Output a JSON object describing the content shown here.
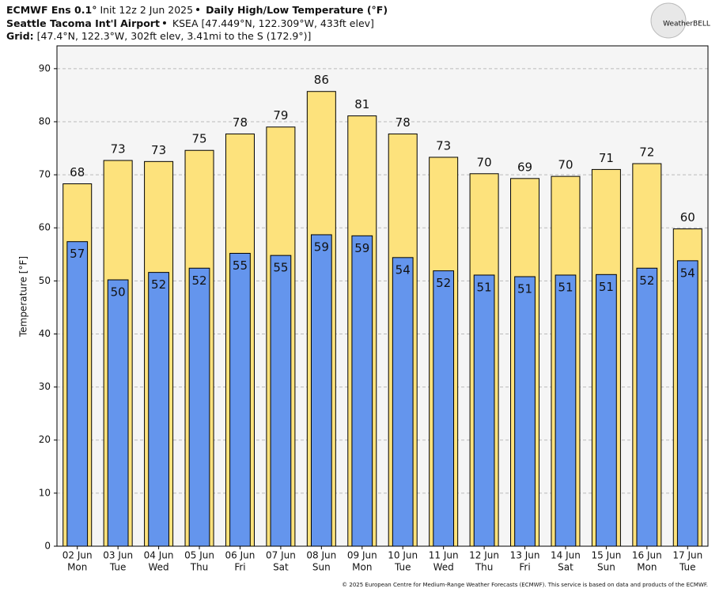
{
  "chart_data": {
    "type": "bar",
    "model": "ECMWF Ens 0.1°",
    "init": "Init 12z 2 Jun 2025",
    "title": "Daily High/Low Temperature (°F)",
    "station": "Seattle Tacoma Int'l Airport",
    "station_info": "KSEA [47.449°N, 122.309°W, 433ft elev]",
    "grid_label": "Grid:",
    "grid_info": "[47.4°N, 122.3°W, 302ft elev, 3.41mi to the S (172.9°)]",
    "logo": "WeatherBELL",
    "footer": "© 2025 European Centre for Medium-Range Weather Forecasts (ECMWF). This service is based on data and products of the ECMWF.",
    "ylabel": "Temperature [°F]",
    "categories": [
      "02 Jun",
      "03 Jun",
      "04 Jun",
      "05 Jun",
      "06 Jun",
      "07 Jun",
      "08 Jun",
      "09 Jun",
      "10 Jun",
      "11 Jun",
      "12 Jun",
      "13 Jun",
      "14 Jun",
      "15 Jun",
      "16 Jun",
      "17 Jun"
    ],
    "weekdays": [
      "Mon",
      "Tue",
      "Wed",
      "Thu",
      "Fri",
      "Sat",
      "Sun",
      "Mon",
      "Tue",
      "Wed",
      "Thu",
      "Fri",
      "Sat",
      "Sun",
      "Mon",
      "Tue"
    ],
    "series": [
      {
        "name": "High",
        "color": "#fde27c",
        "values": [
          68.3,
          72.7,
          72.5,
          74.6,
          77.7,
          79.0,
          85.7,
          81.1,
          77.7,
          73.3,
          70.2,
          69.3,
          69.7,
          71.0,
          72.1,
          59.8
        ],
        "value_labels": [
          "68",
          "73",
          "73",
          "75",
          "78",
          "79",
          "86",
          "81",
          "78",
          "73",
          "70",
          "69",
          "70",
          "71",
          "72",
          "60"
        ]
      },
      {
        "name": "Low",
        "color": "#6495ed",
        "values": [
          57.4,
          50.2,
          51.6,
          52.4,
          55.2,
          54.8,
          58.7,
          58.5,
          54.4,
          51.9,
          51.1,
          50.8,
          51.1,
          51.2,
          52.4,
          53.8
        ],
        "value_labels": [
          "57",
          "50",
          "52",
          "52",
          "55",
          "55",
          "59",
          "59",
          "54",
          "52",
          "51",
          "51",
          "51",
          "51",
          "52",
          "54"
        ]
      }
    ],
    "ylim": [
      0,
      94.3
    ],
    "yticks": [
      0,
      10,
      20,
      30,
      40,
      50,
      60,
      70,
      80,
      90
    ],
    "grid": true
  }
}
